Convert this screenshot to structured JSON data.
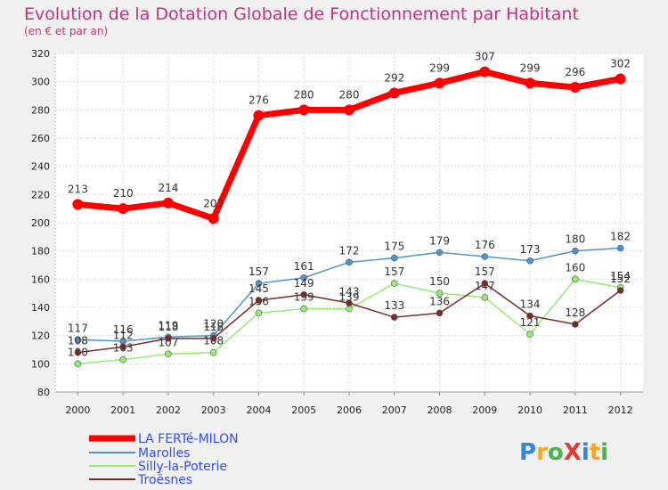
{
  "chart_data": {
    "type": "line",
    "title": "Evolution de la Dotation Globale de Fonctionnement par Habitant",
    "subtitle": "(en € et par an)",
    "xlabel": "",
    "ylabel": "",
    "ylim": [
      80,
      320
    ],
    "yticks": [
      80,
      100,
      120,
      140,
      160,
      180,
      200,
      220,
      240,
      260,
      280,
      300,
      320
    ],
    "grid": true,
    "legend_position": "bottom-left",
    "categories": [
      "2000",
      "2001",
      "2002",
      "2003",
      "2004",
      "2005",
      "2006",
      "2007",
      "2008",
      "2009",
      "2010",
      "2011",
      "2012"
    ],
    "series": [
      {
        "name": "LA FERTé-MILON",
        "color": "#ff0000",
        "values": [
          213,
          210,
          214,
          203,
          276,
          280,
          280,
          292,
          299,
          307,
          299,
          296,
          302
        ]
      },
      {
        "name": "Marolles",
        "color": "#4f94cd",
        "values": [
          117,
          116,
          119,
          120,
          157,
          161,
          172,
          175,
          179,
          176,
          173,
          180,
          182
        ]
      },
      {
        "name": "Silly-la-Poterie",
        "color": "#90ee70",
        "values": [
          100,
          103,
          107,
          108,
          136,
          139,
          139,
          157,
          150,
          147,
          121,
          160,
          154
        ]
      },
      {
        "name": "Troësnes",
        "color": "#7b2a2a",
        "values": [
          108,
          112,
          118,
          118,
          145,
          149,
          143,
          133,
          136,
          157,
          134,
          128,
          152
        ]
      }
    ]
  },
  "brand": {
    "text": "ProXiti"
  }
}
